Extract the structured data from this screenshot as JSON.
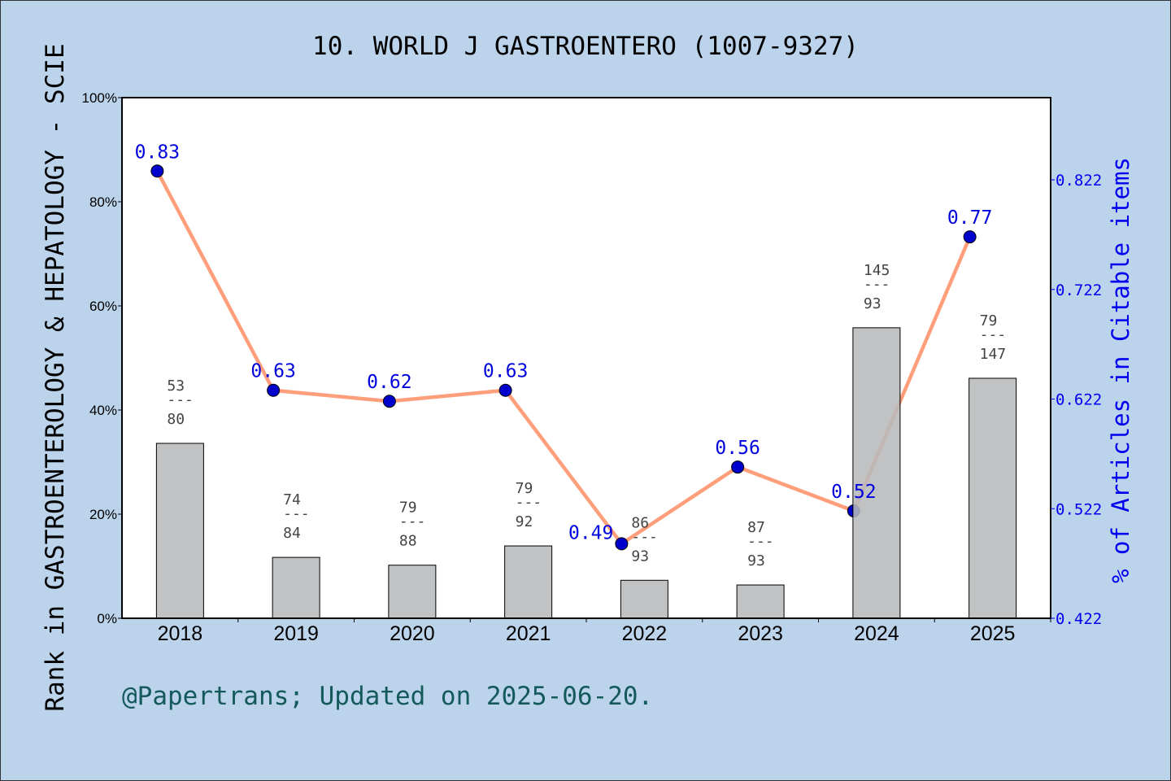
{
  "chart_data": {
    "type": "bar+line",
    "title": "10. WORLD J GASTROENTERO (1007-9327)",
    "ylabel_left": "Rank in GASTROENTEROLOGY & HEPATOLOGY - SCIE",
    "ylabel_right": "% of Articles in Citable items",
    "footer": "@Papertrans; Updated on 2025-06-20.",
    "categories": [
      "2018",
      "2019",
      "2020",
      "2021",
      "2022",
      "2023",
      "2024",
      "2025"
    ],
    "left_ylim": [
      0,
      100
    ],
    "left_ticks": [
      "0%",
      "20%",
      "40%",
      "60%",
      "80%",
      "100%"
    ],
    "right_ylim": [
      0.422,
      0.897
    ],
    "right_ticks": [
      "0.422",
      "0.522",
      "0.622",
      "0.722",
      "0.822"
    ],
    "bars": {
      "values_percent": [
        33.6,
        11.7,
        10.2,
        13.9,
        7.3,
        6.4,
        55.8,
        46.1
      ],
      "labels_top": [
        "53",
        "74",
        "79",
        "79",
        "86",
        "87",
        "145",
        "79"
      ],
      "labels_bottom": [
        "80",
        "84",
        "88",
        "92",
        "93",
        "93",
        "93",
        "147"
      ],
      "color": "#b8b9bb"
    },
    "line": {
      "values": [
        0.83,
        0.63,
        0.62,
        0.63,
        0.49,
        0.56,
        0.52,
        0.77
      ],
      "labels": [
        "0.83",
        "0.63",
        "0.62",
        "0.63",
        "0.49",
        "0.56",
        "0.52",
        "0.77"
      ],
      "line_color": "#ff9e7a",
      "marker_color": "#0000cc"
    },
    "grid": false
  }
}
